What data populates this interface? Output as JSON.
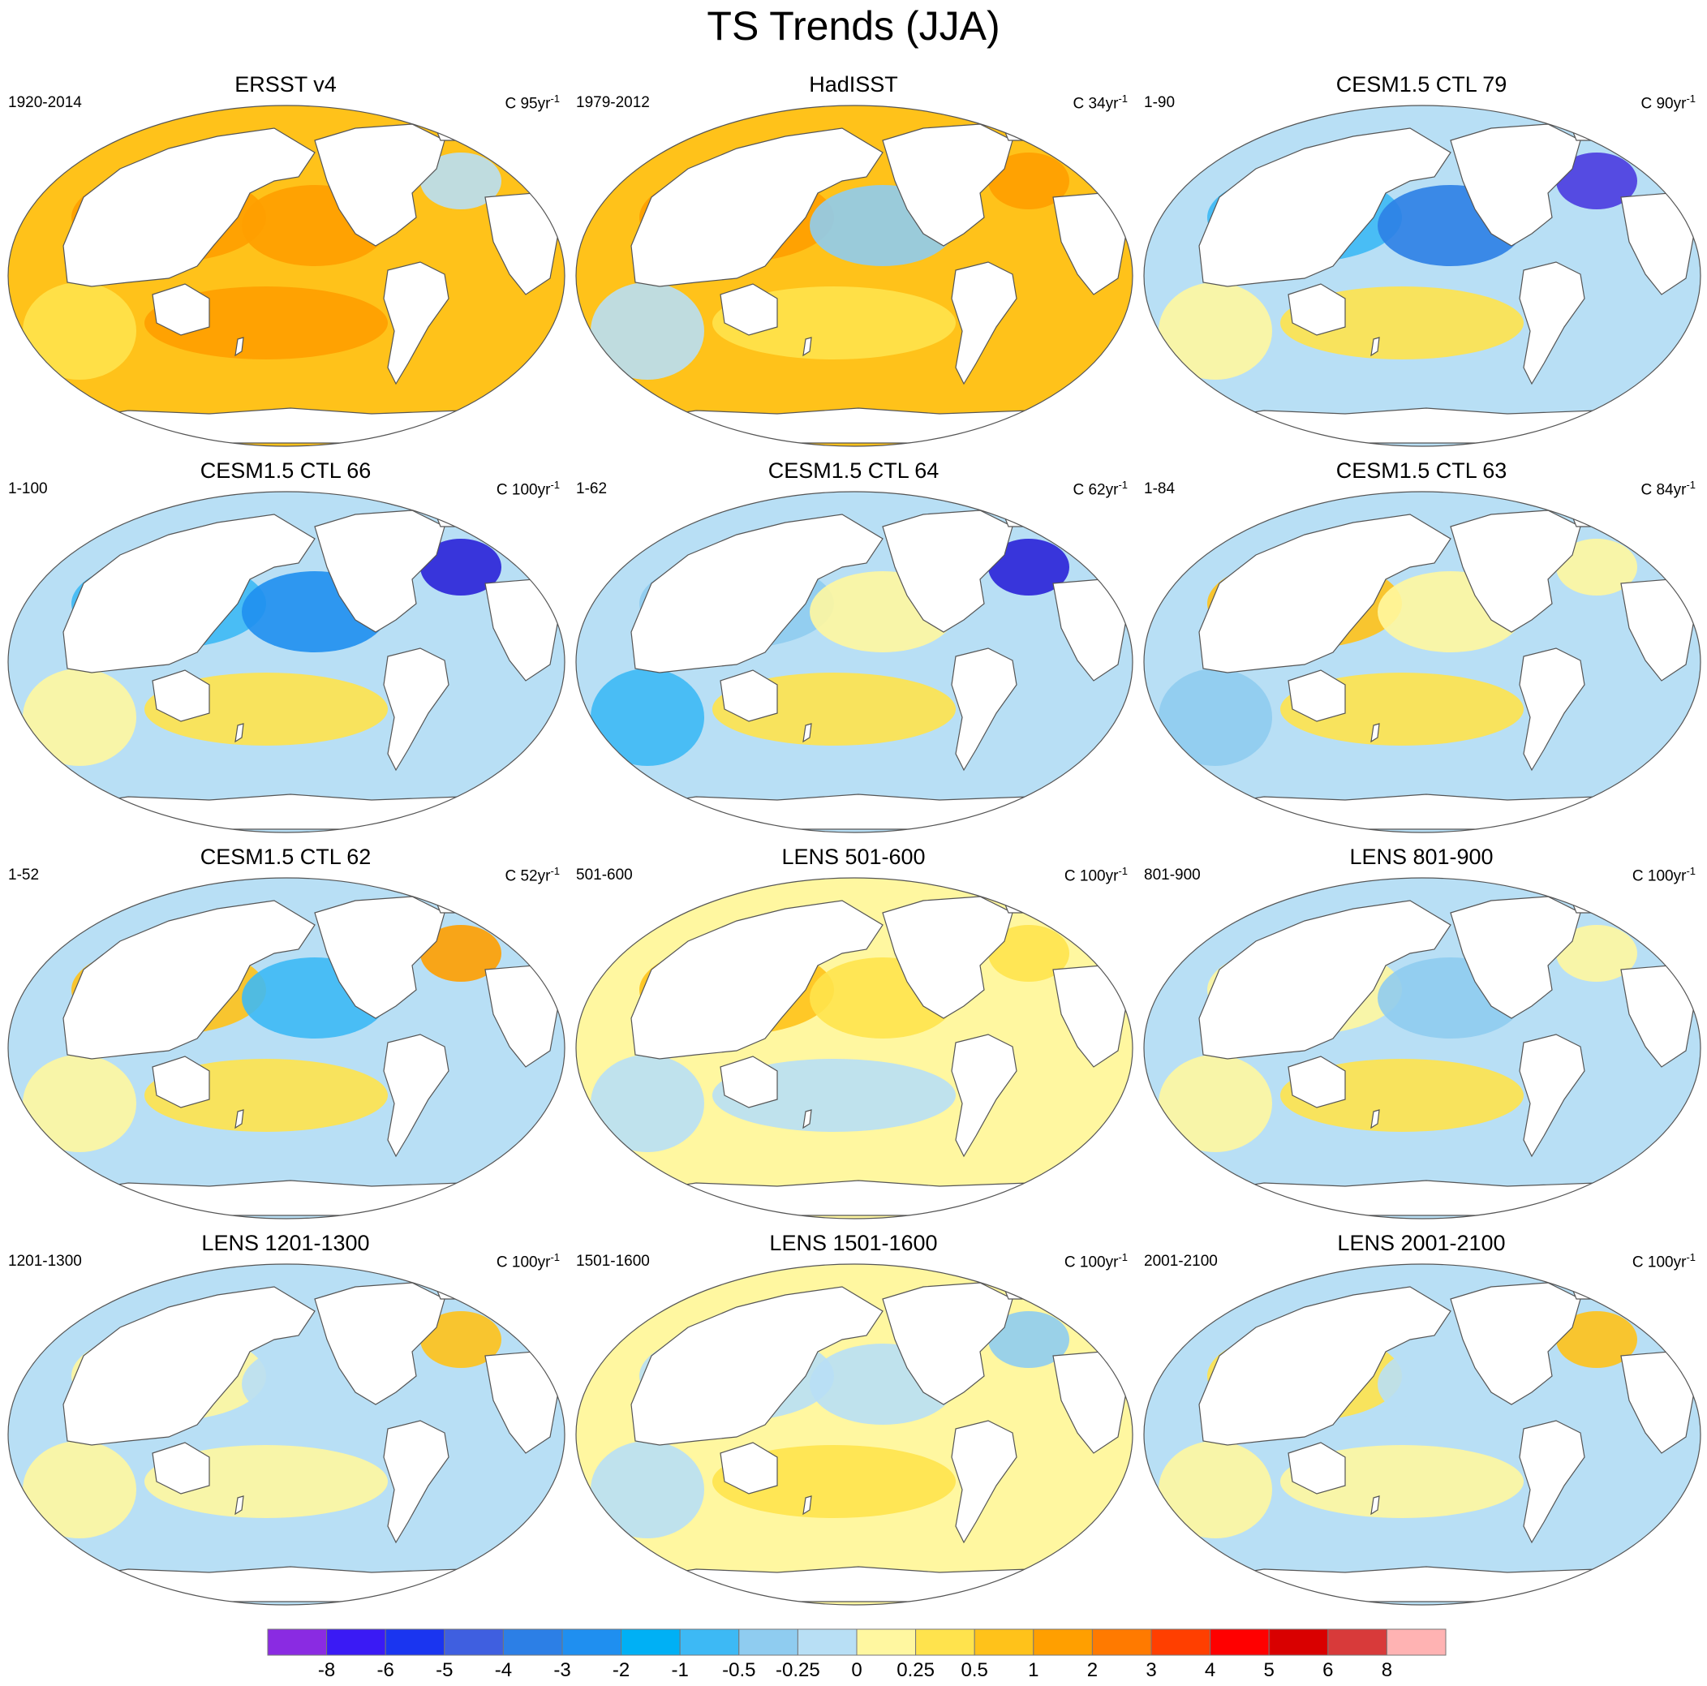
{
  "figure": {
    "title": "TS Trends (JJA)"
  },
  "panels": [
    {
      "title": "ERSST v4",
      "period": "1920-2014",
      "units_prefix": "C 95yr",
      "units_exp": "-1",
      "ocean_color": "#FFC21A",
      "patch_colors": [
        "#FF9F00",
        "#FF9F00",
        "#FF9F00",
        "#FFE34D",
        "#B8DFF5"
      ]
    },
    {
      "title": "HadISST",
      "period": "1979-2012",
      "units_prefix": "C 34yr",
      "units_exp": "-1",
      "ocean_color": "#FFC21A",
      "patch_colors": [
        "#FF9F00",
        "#8FCCF0",
        "#FFE34D",
        "#B8DFF5",
        "#FF9F00"
      ]
    },
    {
      "title": "CESM1.5 CTL 79",
      "period": "1-90",
      "units_prefix": "C 90yr",
      "units_exp": "-1",
      "ocean_color": "#B8DFF5",
      "patch_colors": [
        "#3DB9F5",
        "#2C7FE6",
        "#FFE34D",
        "#FFF7A0",
        "#4A3BE0"
      ]
    },
    {
      "title": "CESM1.5 CTL 66",
      "period": "1-100",
      "units_prefix": "C 100yr",
      "units_exp": "-1",
      "ocean_color": "#B8DFF5",
      "patch_colors": [
        "#3DB9F5",
        "#1F8FF0",
        "#FFE34D",
        "#FFF7A0",
        "#2A22D8"
      ]
    },
    {
      "title": "CESM1.5 CTL 64",
      "period": "1-62",
      "units_prefix": "C 62yr",
      "units_exp": "-1",
      "ocean_color": "#B8DFF5",
      "patch_colors": [
        "#8FCCF0",
        "#FFF7A0",
        "#FFE34D",
        "#3DB9F5",
        "#2A22D8"
      ]
    },
    {
      "title": "CESM1.5 CTL 63",
      "period": "1-84",
      "units_prefix": "C 84yr",
      "units_exp": "-1",
      "ocean_color": "#B8DFF5",
      "patch_colors": [
        "#FFC21A",
        "#FFF7A0",
        "#FFE34D",
        "#8FCCF0",
        "#FFF7A0"
      ]
    },
    {
      "title": "CESM1.5 CTL 62",
      "period": "1-52",
      "units_prefix": "C 52yr",
      "units_exp": "-1",
      "ocean_color": "#B8DFF5",
      "patch_colors": [
        "#FFC21A",
        "#3DB9F5",
        "#FFE34D",
        "#FFF7A0",
        "#FF9F00"
      ]
    },
    {
      "title": "LENS 501-600",
      "period": "501-600",
      "units_prefix": "C 100yr",
      "units_exp": "-1",
      "ocean_color": "#FFF7A0",
      "patch_colors": [
        "#FFC21A",
        "#FFE34D",
        "#B8DFF5",
        "#B8DFF5",
        "#FFE34D"
      ]
    },
    {
      "title": "LENS 801-900",
      "period": "801-900",
      "units_prefix": "C 100yr",
      "units_exp": "-1",
      "ocean_color": "#B8DFF5",
      "patch_colors": [
        "#FFF7A0",
        "#8FCCF0",
        "#FFE34D",
        "#FFF7A0",
        "#FFF7A0"
      ]
    },
    {
      "title": "LENS 1201-1300",
      "period": "1201-1300",
      "units_prefix": "C 100yr",
      "units_exp": "-1",
      "ocean_color": "#B8DFF5",
      "patch_colors": [
        "#FFF7A0",
        "#B8DFF5",
        "#FFF7A0",
        "#FFF7A0",
        "#FFC21A"
      ]
    },
    {
      "title": "LENS 1501-1600",
      "period": "1501-1600",
      "units_prefix": "C 100yr",
      "units_exp": "-1",
      "ocean_color": "#FFF7A0",
      "patch_colors": [
        "#B8DFF5",
        "#B8DFF5",
        "#FFE34D",
        "#B8DFF5",
        "#8FCCF0"
      ]
    },
    {
      "title": "LENS 2001-2100",
      "period": "2001-2100",
      "units_prefix": "C 100yr",
      "units_exp": "-1",
      "ocean_color": "#B8DFF5",
      "patch_colors": [
        "#FFE34D",
        "#B8DFF5",
        "#FFF7A0",
        "#FFF7A0",
        "#FFC21A"
      ]
    }
  ],
  "colorbar": {
    "colors": [
      "#8A2BE2",
      "#3A1AF5",
      "#1A35F0",
      "#3F5FE0",
      "#2C7FE6",
      "#1F8FF0",
      "#00B0F5",
      "#3DB9F5",
      "#8FCCF0",
      "#B8DFF5",
      "#FFF7A0",
      "#FFE34D",
      "#FFC21A",
      "#FF9F00",
      "#FF7A00",
      "#FF3F00",
      "#FF0000",
      "#D90000",
      "#D83A3A",
      "#FFB3B3"
    ],
    "labels": [
      "-8",
      "-6",
      "-5",
      "-4",
      "-3",
      "-2",
      "-1",
      "-0.5",
      "-0.25",
      "0",
      "0.25",
      "0.5",
      "1",
      "2",
      "3",
      "4",
      "5",
      "6",
      "8"
    ]
  }
}
